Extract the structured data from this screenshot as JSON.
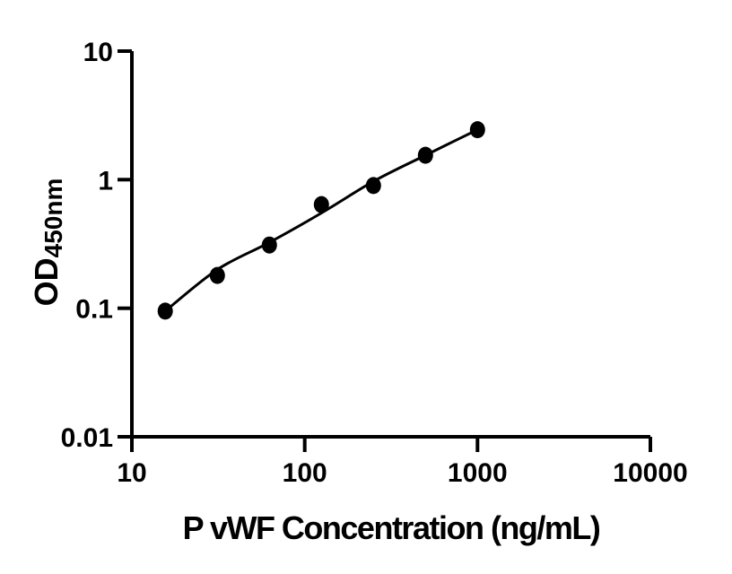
{
  "figure": {
    "background": "#ffffff",
    "ink_color": "#000000"
  },
  "chart_data": {
    "type": "scatter",
    "title": "",
    "xlabel": "P vWF Concentration (ng/mL)",
    "ylabel": "OD",
    "ylabel_subscript": "450nm",
    "x_scale": "log",
    "y_scale": "log",
    "xlim": [
      10,
      10000
    ],
    "ylim": [
      0.01,
      10
    ],
    "x_ticks": [
      10,
      100,
      1000,
      10000
    ],
    "x_tick_labels": [
      "10",
      "100",
      "1000",
      "10000"
    ],
    "y_ticks": [
      10,
      1,
      0.1,
      0.01
    ],
    "y_tick_labels": [
      "10",
      "1",
      "0.1",
      "0.01"
    ],
    "grid": false,
    "legend": "none",
    "series": [
      {
        "name": "standard-points",
        "type": "scatter",
        "marker": "filled-circle",
        "color": "#000000",
        "x": [
          15.6,
          31.25,
          62.5,
          125,
          250,
          500,
          1000
        ],
        "y": [
          0.095,
          0.18,
          0.31,
          0.64,
          0.9,
          1.55,
          2.45
        ]
      },
      {
        "name": "fit-curve",
        "type": "line",
        "color": "#000000",
        "x": [
          15.6,
          31.25,
          62.5,
          125,
          250,
          500,
          1000
        ],
        "y": [
          0.095,
          0.2,
          0.325,
          0.55,
          0.97,
          1.55,
          2.45
        ]
      }
    ]
  }
}
